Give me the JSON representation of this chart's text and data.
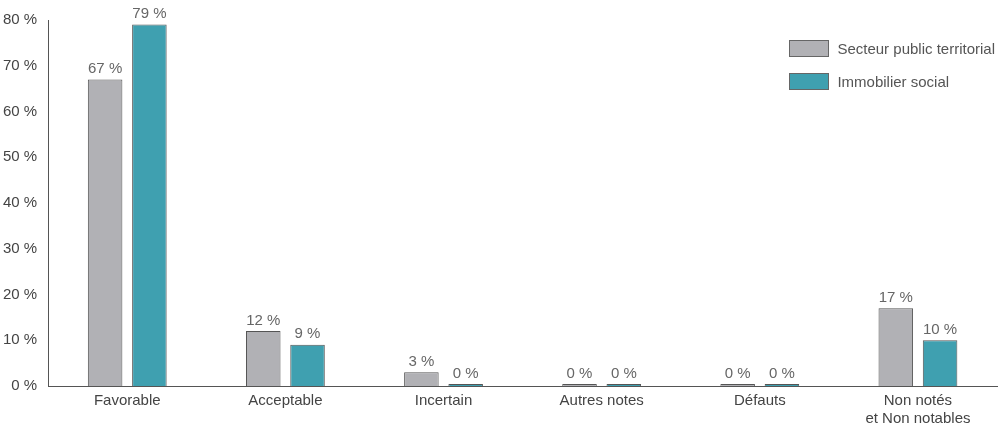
{
  "chart_data": {
    "type": "bar",
    "categories": [
      "Favorable",
      "Acceptable",
      "Incertain",
      "Autres notes",
      "Défauts",
      "Non notés\net Non notables"
    ],
    "series": [
      {
        "name": "Secteur public territorial",
        "color": "#b1b1b5",
        "values": [
          67,
          12,
          3,
          0,
          0,
          17
        ],
        "value_labels": [
          "67 %",
          "12 %",
          "3 %",
          "0 %",
          "0 %",
          "17 %"
        ]
      },
      {
        "name": "Immobilier social",
        "color": "#3fa0b0",
        "values": [
          79,
          9,
          0,
          0,
          0,
          10
        ],
        "value_labels": [
          "79 %",
          "9 %",
          "0 %",
          "0 %",
          "0 %",
          "10 %"
        ]
      }
    ],
    "ylim": [
      0,
      80
    ],
    "yticks": [
      {
        "value": 0,
        "label": "0 %"
      },
      {
        "value": 10,
        "label": "10 %"
      },
      {
        "value": 20,
        "label": "20 %"
      },
      {
        "value": 30,
        "label": "30 %"
      },
      {
        "value": 40,
        "label": "40 %"
      },
      {
        "value": 50,
        "label": "50 %"
      },
      {
        "value": 60,
        "label": "60 %"
      },
      {
        "value": 70,
        "label": "70 %"
      },
      {
        "value": 80,
        "label": "80 %"
      }
    ],
    "grid": false,
    "legend": "top right"
  }
}
